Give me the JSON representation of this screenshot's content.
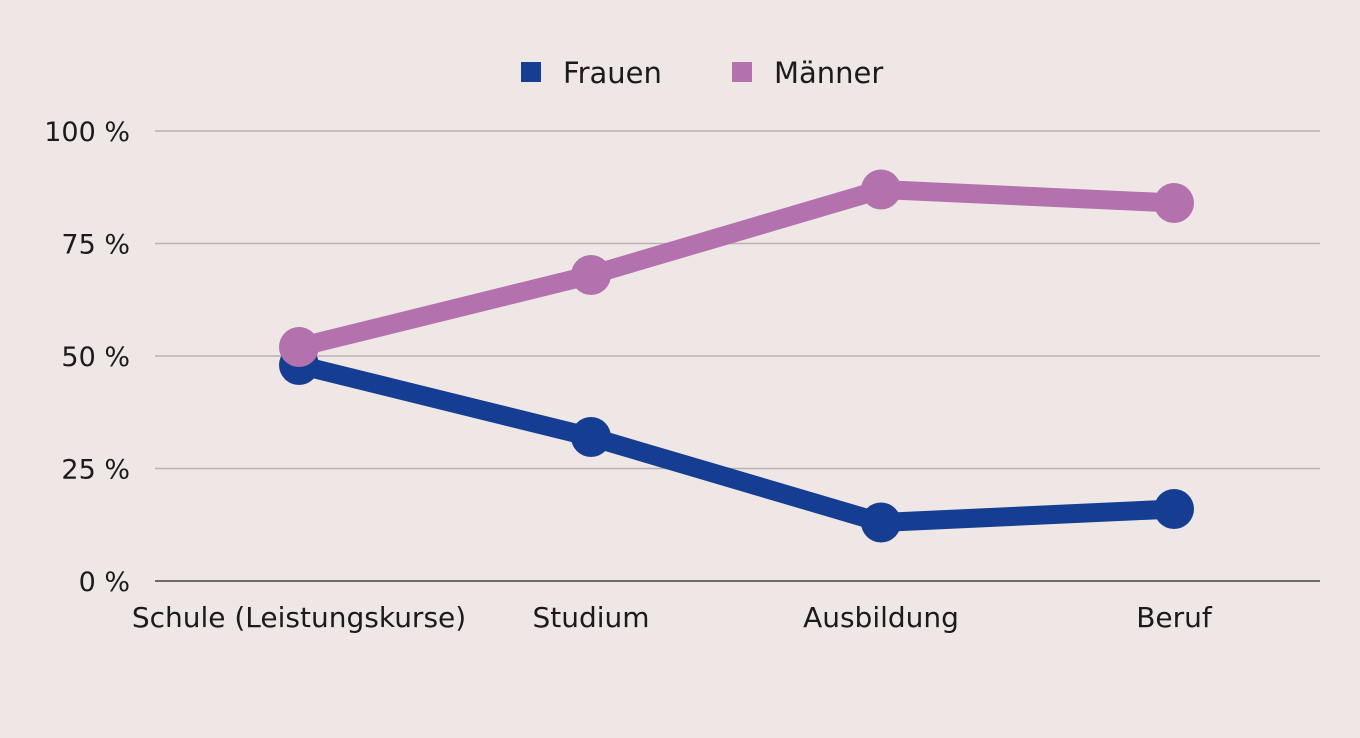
{
  "chart_data": {
    "type": "line",
    "categories": [
      "Schule (Leistungskurse)",
      "Studium",
      "Ausbildung",
      "Beruf"
    ],
    "series": [
      {
        "name": "Frauen",
        "color": "#153e93",
        "values": [
          48,
          32,
          13,
          16
        ]
      },
      {
        "name": "Männer",
        "color": "#b372ae",
        "values": [
          52,
          68,
          87,
          84
        ]
      }
    ],
    "yticks": [
      "0 %",
      "25 %",
      "50 %",
      "75 %",
      "100 %"
    ],
    "ytick_values": [
      0,
      25,
      50,
      75,
      100
    ],
    "ylim": [
      0,
      100
    ],
    "grid": true,
    "legend_position": "top",
    "title": "",
    "xlabel": "",
    "ylabel": ""
  }
}
